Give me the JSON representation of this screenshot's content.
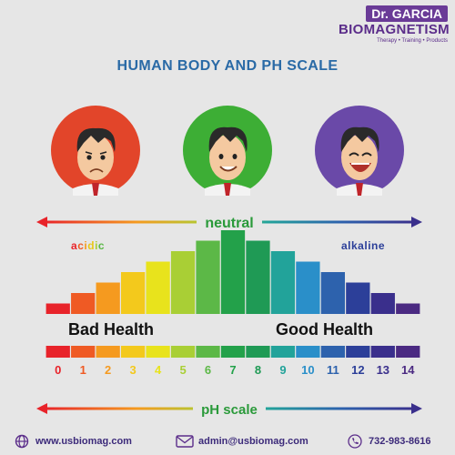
{
  "brand": {
    "top": "Dr. GARCIA",
    "name": "BIOMAGNETISM",
    "tagline": "Therapy • Training • Products"
  },
  "title": "HUMAN BODY AND PH SCALE",
  "faces": [
    {
      "mood": "sad",
      "circle_color": "#e2452a"
    },
    {
      "mood": "smiling",
      "circle_color": "#3dae35"
    },
    {
      "mood": "laughing",
      "circle_color": "#6a49a8"
    }
  ],
  "scale": {
    "neutral_label": "neutral",
    "acidic_label": "acidic",
    "alkaline_label": "alkaline",
    "bad_health": "Bad Health",
    "good_health": "Good Health",
    "ph_label": "pH scale",
    "numbers": [
      "0",
      "1",
      "2",
      "3",
      "4",
      "5",
      "6",
      "7",
      "8",
      "9",
      "10",
      "11",
      "12",
      "13",
      "14"
    ],
    "colors": [
      "#e8232a",
      "#ef5a24",
      "#f59a1f",
      "#f3c91c",
      "#e8e31c",
      "#a9cf35",
      "#5cb847",
      "#23a14a",
      "#1f9a55",
      "#22a39a",
      "#2a8fc9",
      "#2d62ad",
      "#2c3f99",
      "#3a2f8c",
      "#4b2a82"
    ],
    "heights": [
      1,
      2,
      3,
      4,
      5,
      6,
      7,
      8,
      7,
      6,
      5,
      4,
      3,
      2,
      1
    ]
  },
  "footer": {
    "website": "www.usbiomag.com",
    "email": "admin@usbiomag.com",
    "phone": "732-983-8616"
  }
}
